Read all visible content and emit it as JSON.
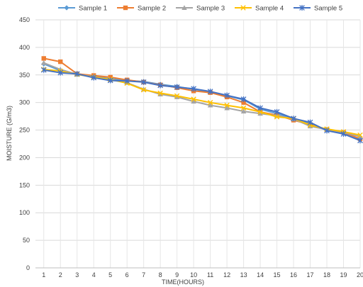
{
  "chart_data": {
    "type": "line",
    "xlabel": "TIME(HOURS)",
    "ylabel": "MOISTURE    (G/m3)",
    "ylim": [
      0,
      450
    ],
    "yticks": [
      0,
      50,
      100,
      150,
      200,
      250,
      300,
      350,
      400,
      450
    ],
    "categories": [
      "1",
      "2",
      "3",
      "4",
      "5",
      "6",
      "7",
      "8",
      "9",
      "10",
      "11",
      "12",
      "13",
      "14",
      "15",
      "16",
      "17",
      "18",
      "19",
      "20"
    ],
    "grid": "on",
    "legend_position": "top",
    "series": [
      {
        "name": "Sample 1",
        "color": "#5b9bd5",
        "marker": "diamond",
        "values": [
          370,
          358,
          352,
          348,
          343,
          340,
          338,
          333,
          329,
          324,
          319,
          312,
          305,
          288,
          280,
          270,
          262,
          250,
          245,
          233
        ]
      },
      {
        "name": "Sample 2",
        "color": "#ed7d31",
        "marker": "square",
        "values": [
          380,
          374,
          352,
          349,
          346,
          341,
          337,
          332,
          327,
          321,
          318,
          310,
          300,
          283,
          277,
          268,
          260,
          251,
          246,
          234
        ]
      },
      {
        "name": "Sample 3",
        "color": "#a5a5a5",
        "marker": "triangle",
        "values": [
          372,
          360,
          351,
          347,
          341,
          336,
          324,
          315,
          310,
          302,
          295,
          290,
          284,
          280,
          276,
          270,
          257,
          251,
          246,
          238
        ]
      },
      {
        "name": "Sample 4",
        "color": "#ffc000",
        "marker": "x",
        "values": [
          360,
          357,
          351,
          346,
          342,
          335,
          323,
          317,
          312,
          306,
          300,
          295,
          290,
          283,
          274,
          271,
          259,
          252,
          247,
          241
        ]
      },
      {
        "name": "Sample 5",
        "color": "#4472c4",
        "marker": "star",
        "values": [
          359,
          354,
          352,
          345,
          340,
          339,
          337,
          331,
          328,
          325,
          320,
          313,
          306,
          290,
          283,
          271,
          264,
          249,
          243,
          231
        ]
      }
    ]
  }
}
